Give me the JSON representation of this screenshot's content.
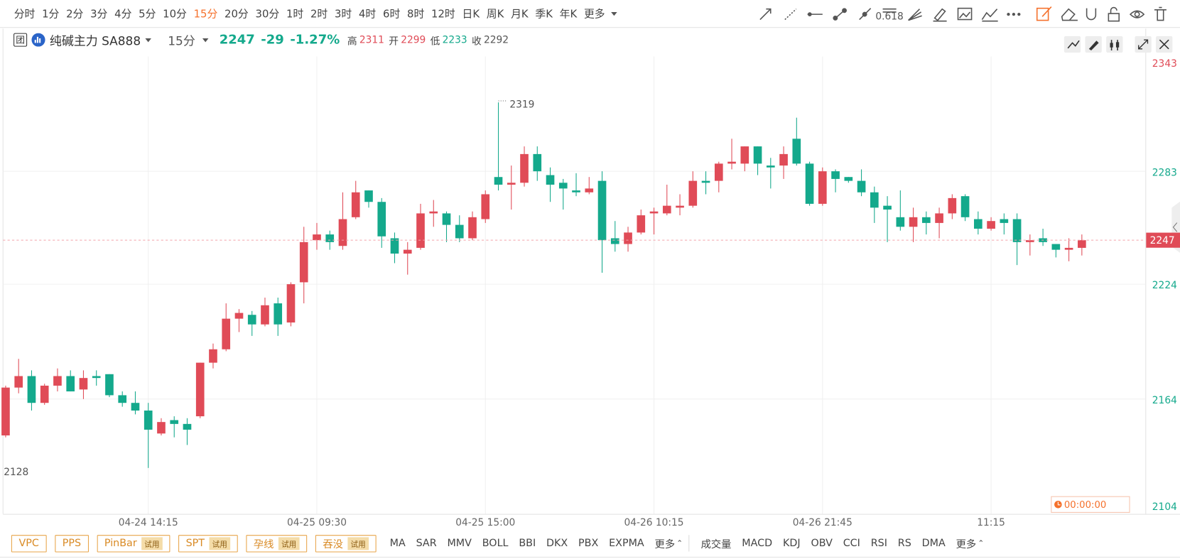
{
  "toolbar": {
    "periods": [
      "分时",
      "1分",
      "2分",
      "3分",
      "4分",
      "5分",
      "10分",
      "15分",
      "20分",
      "30分",
      "1时",
      "2时",
      "3时",
      "4时",
      "6时",
      "8时",
      "12时",
      "日K",
      "周K",
      "月K",
      "季K",
      "年K"
    ],
    "active_period": "15分",
    "active_color": "#f5712c",
    "more": "更多"
  },
  "header": {
    "badge": "团",
    "symbol": "纯碱主力 SA888",
    "period": "15分",
    "change": -29,
    "change_pct": "-1.27%",
    "stats": [
      {
        "label": "高",
        "value": 2311,
        "color": "#e04b57"
      },
      {
        "label": "开",
        "value": 2299,
        "color": "#e04b57"
      },
      {
        "label": "低",
        "value": 2233,
        "color": "#14a98c"
      },
      {
        "label": "收",
        "value": 2292,
        "color": "#555555"
      }
    ]
  },
  "chart_data": {
    "type": "candlestick",
    "x": [
      null,
      null,
      null,
      null,
      null,
      null,
      null,
      null,
      null,
      null,
      null,
      "04-24 14:15",
      null,
      null,
      null,
      null,
      null,
      null,
      null,
      null,
      null,
      null,
      null,
      null,
      "04-25 09:30",
      null,
      null,
      null,
      null,
      null,
      null,
      null,
      null,
      null,
      null,
      null,
      null,
      "04-25 15:00",
      null,
      null,
      null,
      null,
      null,
      null,
      null,
      null,
      null,
      null,
      null,
      null,
      "04-26 10:15",
      null,
      null,
      null,
      null,
      null,
      null,
      null,
      null,
      null,
      null,
      null,
      null,
      "04-26 21:45",
      null,
      null,
      null,
      null,
      null,
      null,
      null,
      null,
      null,
      null,
      null,
      null,
      "11:15",
      null,
      null,
      null,
      null,
      null,
      null,
      null
    ],
    "open": [
      2145,
      2170,
      2176,
      2162,
      2171,
      2176,
      2169,
      2176,
      2177,
      2166,
      2162,
      2158,
      2146,
      2153,
      2151,
      2155,
      2183,
      2190,
      2206,
      2208,
      2203,
      2214,
      2204,
      2225,
      2247,
      2250,
      2244,
      2259,
      2273,
      2267,
      2248,
      2240,
      2243,
      2261,
      2261,
      2255,
      2248,
      2258,
      2280,
      2276,
      2277,
      2292,
      2281,
      2277,
      2273,
      2272,
      2278,
      2248,
      2245,
      2251,
      2261,
      2261,
      2264,
      2265,
      2278,
      2278,
      2287,
      2287,
      2296,
      2286,
      2286,
      2300,
      2287,
      2266,
      2283,
      2280,
      2278,
      2272,
      2265,
      2259,
      2254,
      2259,
      2256,
      2261,
      2270,
      2258,
      2253,
      2258,
      2258,
      2246,
      2248,
      2245,
      2242,
      2243
    ],
    "high": [
      2171,
      2185,
      2179,
      2172,
      2180,
      2179,
      2179,
      2179,
      2177,
      2168,
      2168,
      2162,
      2154,
      2155,
      2154,
      2183,
      2193,
      2214,
      2211,
      2210,
      2217,
      2217,
      2225,
      2254,
      2256,
      2252,
      2272,
      2278,
      2273,
      2269,
      2251,
      2246,
      2266,
      2268,
      2262,
      2260,
      2262,
      2273,
      2319,
      2286,
      2296,
      2296,
      2285,
      2279,
      2282,
      2280,
      2283,
      2257,
      2254,
      2263,
      2264,
      2276,
      2271,
      2283,
      2283,
      2288,
      2300,
      2296,
      2296,
      2290,
      2296,
      2311,
      2288,
      2285,
      2284,
      2280,
      2284,
      2275,
      2270,
      2273,
      2264,
      2262,
      2264,
      2271,
      2271,
      2262,
      2259,
      2261,
      2261,
      2250,
      2253,
      2245,
      2248,
      2250
    ],
    "low": [
      2144,
      2167,
      2158,
      2161,
      2168,
      2168,
      2164,
      2171,
      2165,
      2160,
      2156,
      2128,
      2145,
      2144,
      2140,
      2154,
      2180,
      2189,
      2199,
      2197,
      2202,
      2197,
      2202,
      2214,
      2242,
      2242,
      2242,
      2258,
      2264,
      2243,
      2235,
      2229,
      2242,
      2254,
      2246,
      2246,
      2247,
      2256,
      2273,
      2263,
      2275,
      2278,
      2267,
      2263,
      2270,
      2271,
      2230,
      2241,
      2241,
      2250,
      2250,
      2260,
      2260,
      2264,
      2271,
      2272,
      2284,
      2283,
      2281,
      2274,
      2279,
      2286,
      2265,
      2265,
      2272,
      2277,
      2270,
      2256,
      2246,
      2252,
      2246,
      2250,
      2248,
      2258,
      2257,
      2250,
      2252,
      2250,
      2234,
      2239,
      2244,
      2238,
      2236,
      2239
    ],
    "close": [
      2170,
      2176,
      2162,
      2171,
      2176,
      2168,
      2175,
      2175,
      2166,
      2162,
      2158,
      2148,
      2152,
      2151,
      2148,
      2183,
      2190,
      2206,
      2209,
      2203,
      2213,
      2203,
      2224,
      2246,
      2250,
      2246,
      2258,
      2272,
      2267,
      2249,
      2240,
      2242,
      2261,
      2262,
      2255,
      2248,
      2259,
      2271,
      2276,
      2277,
      2292,
      2283,
      2276,
      2274,
      2272,
      2274,
      2247,
      2245,
      2251,
      2260,
      2262,
      2265,
      2265,
      2278,
      2277,
      2287,
      2288,
      2296,
      2287,
      2285,
      2292,
      2287,
      2266,
      2283,
      2279,
      2278,
      2272,
      2264,
      2263,
      2254,
      2259,
      2256,
      2261,
      2269,
      2259,
      2253,
      2257,
      2256,
      2246,
      2247,
      2246,
      2242,
      2243,
      2247
    ],
    "up_color": "#e04b57",
    "down_color": "#14a98c",
    "ylim": [
      2104,
      2343
    ],
    "yticks": [
      2104,
      2164,
      2224,
      2283,
      2343
    ],
    "ytick_colors": [
      "#14a98c",
      "#14a98c",
      "#14a98c",
      "#14a98c",
      "#e04b57"
    ],
    "grid": true,
    "last_price": 2247
  },
  "timer": "00:00:00",
  "bottom": {
    "patterns": [
      {
        "label": "VPC"
      },
      {
        "label": "PPS"
      },
      {
        "label": "PinBar",
        "tag": "试用"
      },
      {
        "label": "SPT",
        "tag": "试用"
      },
      {
        "label": "孕线",
        "tag": "试用"
      },
      {
        "label": "吞没",
        "tag": "试用"
      }
    ],
    "main_indicators": [
      "MA",
      "SAR",
      "MMV",
      "BOLL",
      "BBI",
      "DKX",
      "PBX",
      "EXPMA"
    ],
    "main_more": "更多",
    "sub_indicators": [
      "成交量",
      "MACD",
      "KDJ",
      "OBV",
      "CCI",
      "RSI",
      "RS",
      "DMA"
    ],
    "sub_more": "更多"
  }
}
